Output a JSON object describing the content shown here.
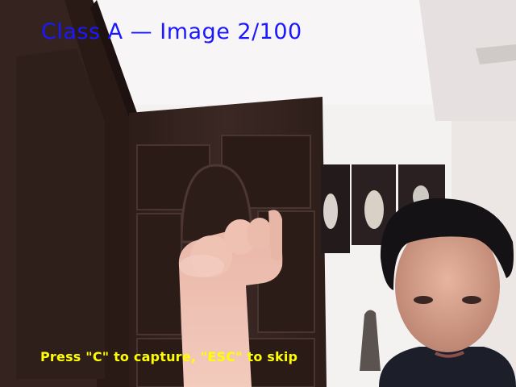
{
  "overlay": {
    "title": "Class A — Image 2/100",
    "hint": "Press \"C\" to capture, \"ESC\" to skip"
  },
  "colors": {
    "title": "#1b17ff",
    "hint": "#ffff00"
  }
}
